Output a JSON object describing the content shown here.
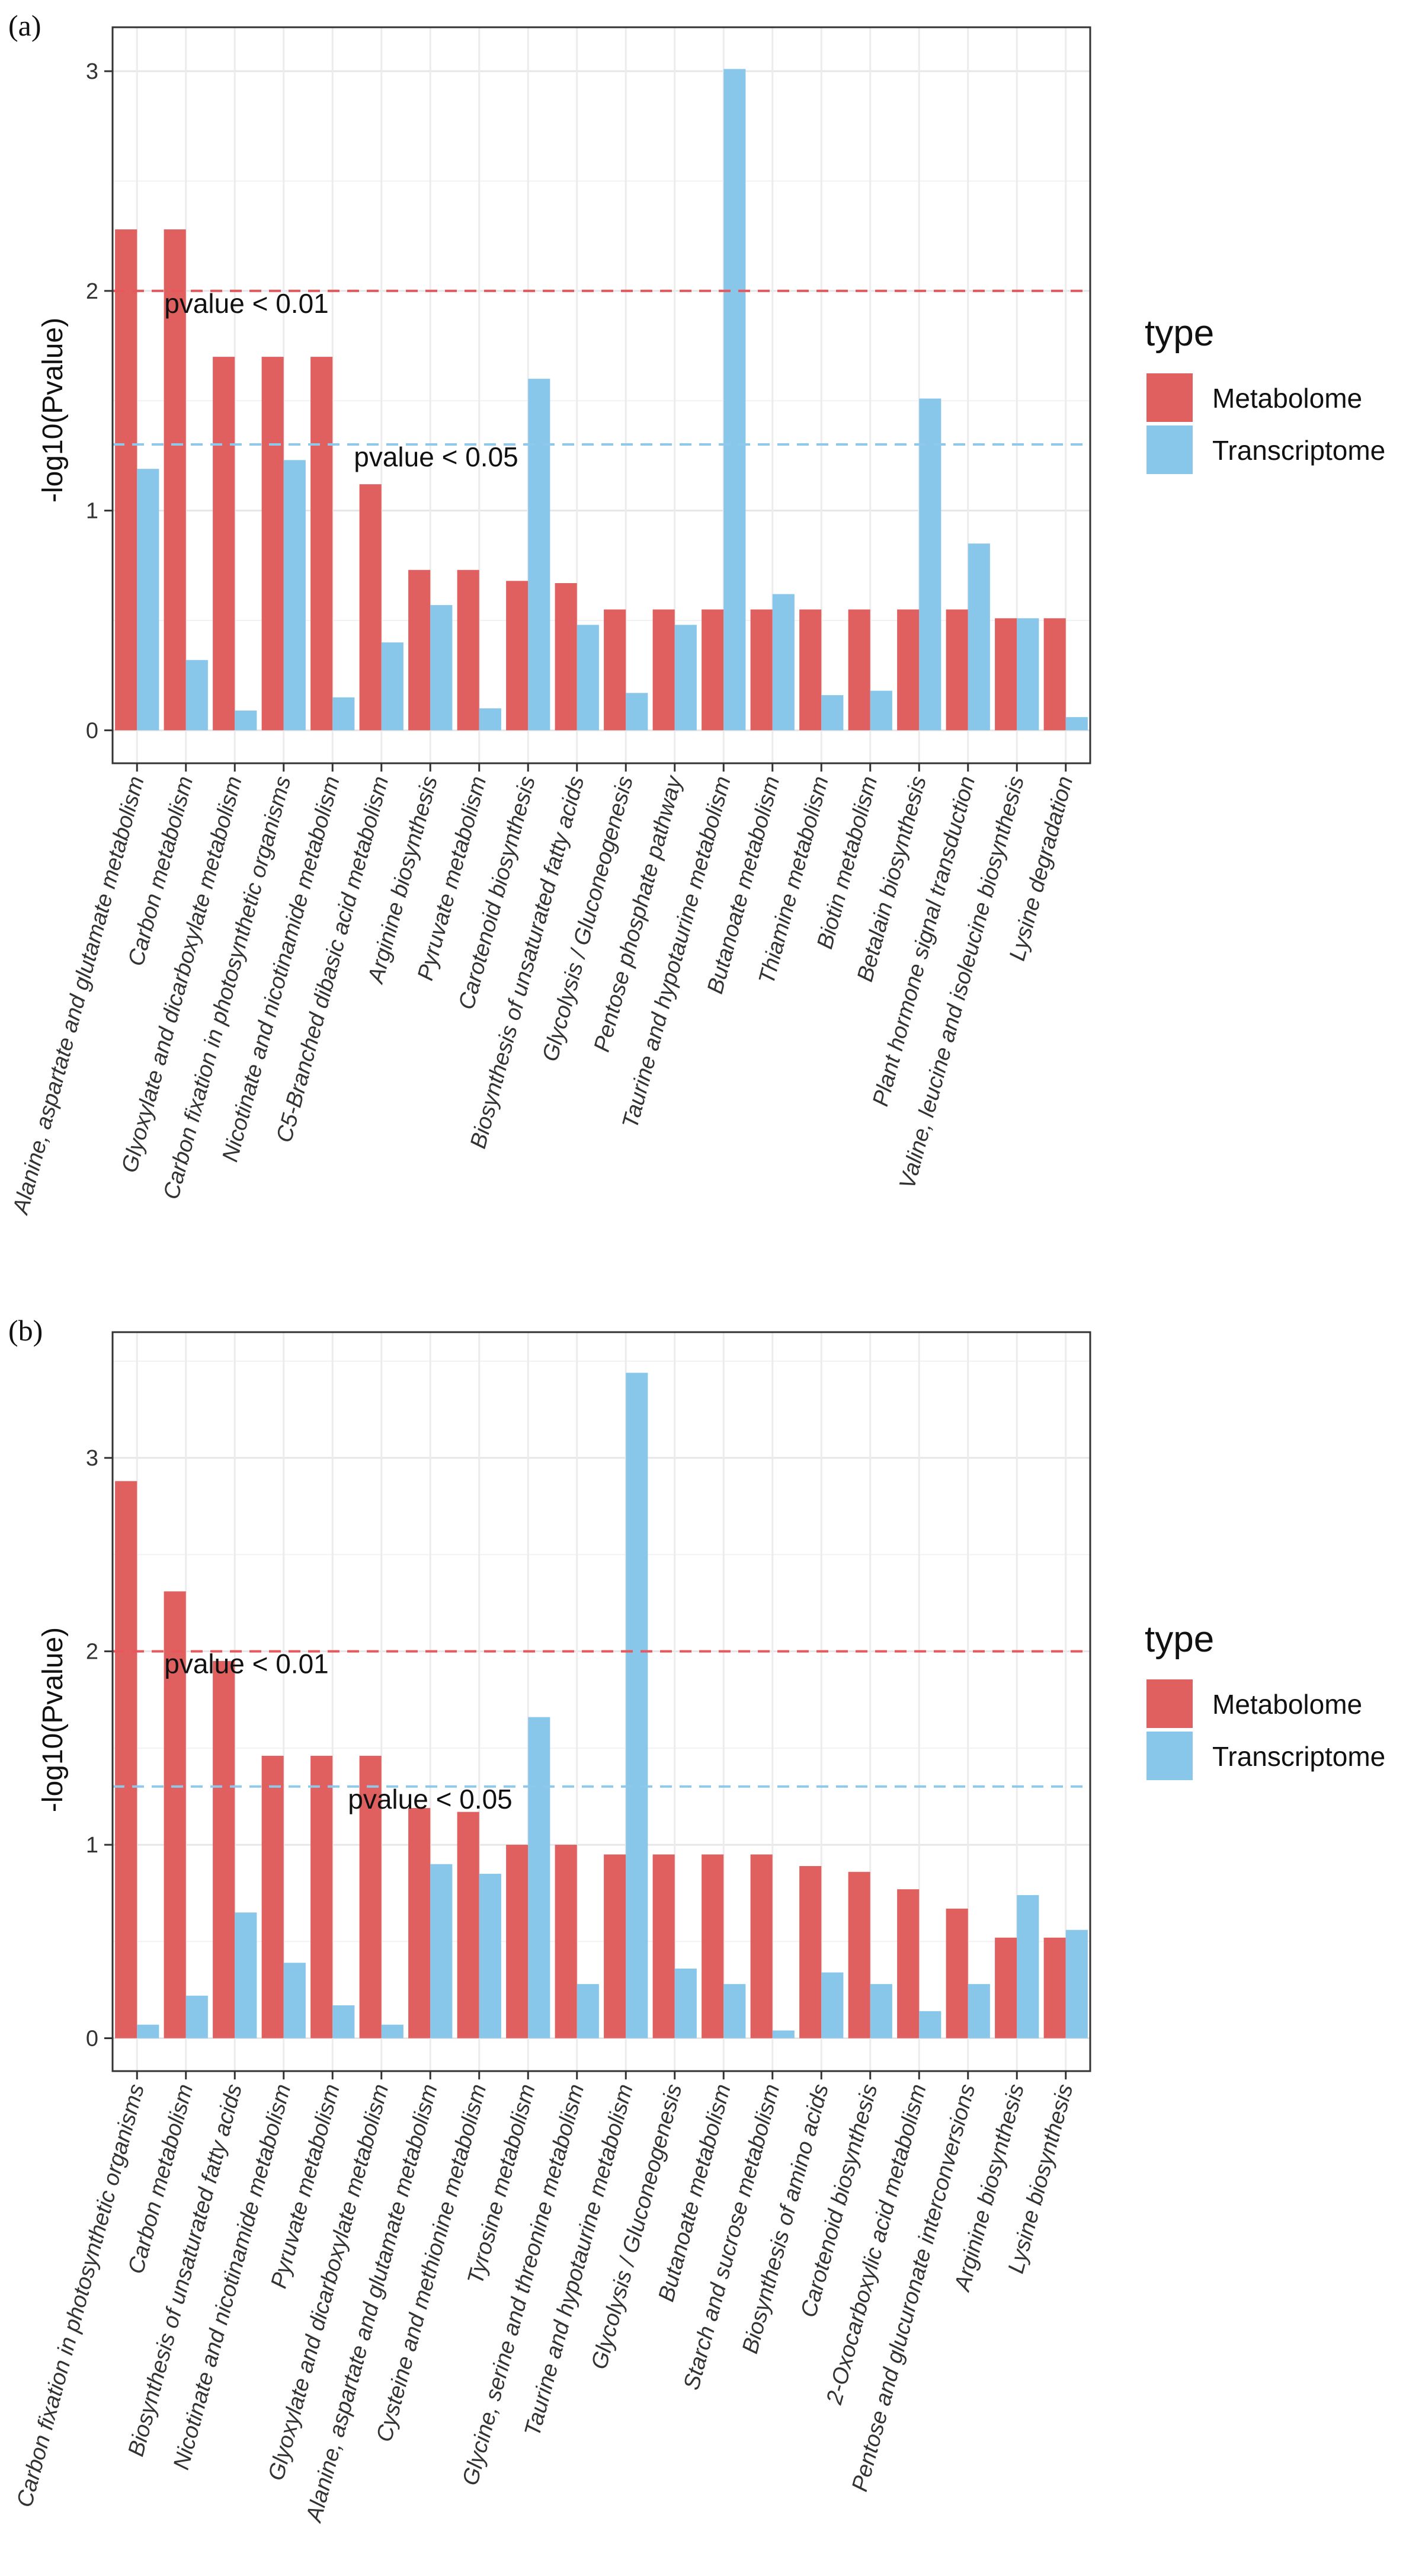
{
  "chart_data": [
    {
      "panel_label": "(a)",
      "type": "bar",
      "xlabel": "",
      "ylabel": "-log10(Pvalue)",
      "ylim": [
        -0.15,
        3.2
      ],
      "yticks": [
        0,
        1,
        2,
        3
      ],
      "grid": true,
      "legend": {
        "title": "type",
        "position": "right"
      },
      "thresholds": [
        {
          "label": "pvalue < 0.01",
          "value": 2.0,
          "color": "#e8575b"
        },
        {
          "label": "pvalue < 0.05",
          "value": 1.301,
          "color": "#8ec8ea"
        }
      ],
      "categories": [
        "Alanine, aspartate and glutamate metabolism",
        "Carbon metabolism",
        "Glyoxylate and dicarboxylate metabolism",
        "Carbon fixation in photosynthetic organisms",
        "Nicotinate and nicotinamide metabolism",
        "C5-Branched dibasic acid metabolism",
        "Arginine biosynthesis",
        "Pyruvate metabolism",
        "Carotenoid biosynthesis",
        "Biosynthesis of unsaturated fatty acids",
        "Glycolysis / Gluconeogenesis",
        "Pentose phosphate pathway",
        "Taurine and hypotaurine metabolism",
        "Butanoate metabolism",
        "Thiamine metabolism",
        "Biotin metabolism",
        "Betalain biosynthesis",
        "Plant hormone signal transduction",
        "Valine, leucine and isoleucine biosynthesis",
        "Lysine degradation"
      ],
      "series": [
        {
          "name": "Metabolome",
          "color": "#e06060",
          "values": [
            2.28,
            2.28,
            1.7,
            1.7,
            1.7,
            1.12,
            0.73,
            0.73,
            0.68,
            0.67,
            0.55,
            0.55,
            0.55,
            0.55,
            0.55,
            0.55,
            0.55,
            0.55,
            0.51,
            0.51
          ]
        },
        {
          "name": "Transcriptome",
          "color": "#88c6ea",
          "values": [
            1.19,
            0.32,
            0.09,
            1.23,
            0.15,
            0.4,
            0.57,
            0.1,
            1.6,
            0.48,
            0.17,
            0.48,
            3.01,
            0.62,
            0.16,
            0.18,
            1.51,
            0.85,
            0.51,
            0.06
          ]
        }
      ]
    },
    {
      "panel_label": "(b)",
      "type": "bar",
      "xlabel": "",
      "ylabel": "-log10(Pvalue)",
      "ylim": [
        -0.17,
        3.65
      ],
      "yticks": [
        0,
        1,
        2,
        3
      ],
      "grid": true,
      "legend": {
        "title": "type",
        "position": "right"
      },
      "thresholds": [
        {
          "label": "pvalue < 0.01",
          "value": 2.0,
          "color": "#e8575b"
        },
        {
          "label": "pvalue < 0.05",
          "value": 1.301,
          "color": "#8ec8ea"
        }
      ],
      "categories": [
        "Carbon fixation in photosynthetic organisms",
        "Carbon metabolism",
        "Biosynthesis of unsaturated fatty acids",
        "Nicotinate and nicotinamide metabolism",
        "Pyruvate metabolism",
        "Glyoxylate and dicarboxylate metabolism",
        "Alanine, aspartate and glutamate metabolism",
        "Cysteine and methionine metabolism",
        "Tyrosine metabolism",
        "Glycine, serine and threonine metabolism",
        "Taurine and hypotaurine metabolism",
        "Glycolysis / Gluconeogenesis",
        "Butanoate metabolism",
        "Starch and sucrose metabolism",
        "Biosynthesis of amino acids",
        "Carotenoid biosynthesis",
        "2-Oxocarboxylic acid metabolism",
        "Pentose and glucuronate interconversions",
        "Arginine biosynthesis",
        "Lysine biosynthesis"
      ],
      "series": [
        {
          "name": "Metabolome",
          "color": "#e06060",
          "values": [
            2.88,
            2.31,
            1.95,
            1.46,
            1.46,
            1.46,
            1.19,
            1.17,
            1.0,
            1.0,
            0.95,
            0.95,
            0.95,
            0.95,
            0.89,
            0.86,
            0.77,
            0.67,
            0.52,
            0.52
          ]
        },
        {
          "name": "Transcriptome",
          "color": "#88c6ea",
          "values": [
            0.07,
            0.22,
            0.65,
            0.39,
            0.17,
            0.07,
            0.9,
            0.85,
            1.66,
            0.28,
            3.44,
            0.36,
            0.28,
            0.04,
            0.34,
            0.28,
            0.14,
            0.28,
            0.74,
            0.56
          ]
        }
      ]
    }
  ]
}
